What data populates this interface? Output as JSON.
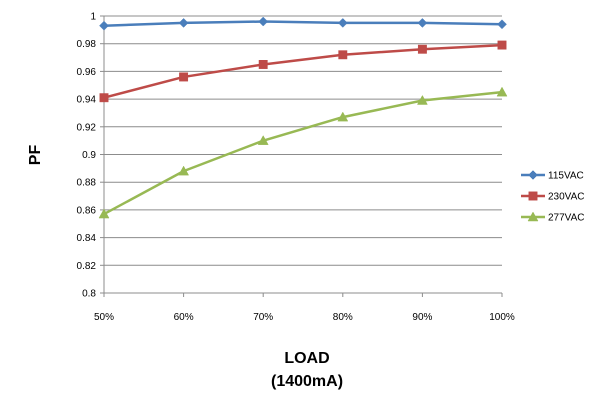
{
  "chart_data": {
    "type": "line",
    "title": "",
    "xlabel_lines": [
      "LOAD",
      "(1400mA)"
    ],
    "ylabel": "PF",
    "categories": [
      "50%",
      "60%",
      "70%",
      "80%",
      "90%",
      "100%"
    ],
    "ylim": [
      0.8,
      1.0
    ],
    "yticks": [
      0.8,
      0.82,
      0.84,
      0.86,
      0.88,
      0.9,
      0.92,
      0.94,
      0.96,
      0.98,
      1.0
    ],
    "ytick_labels": [
      "0.8",
      "0.82",
      "0.84",
      "0.86",
      "0.88",
      "0.9",
      "0.92",
      "0.94",
      "0.96",
      "0.98",
      "1"
    ],
    "grid": true,
    "legend_position": "right",
    "series": [
      {
        "name": "115VAC",
        "color": "#4a7ebb",
        "marker": "diamond",
        "values": [
          0.993,
          0.995,
          0.996,
          0.995,
          0.995,
          0.994
        ]
      },
      {
        "name": "230VAC",
        "color": "#be4b48",
        "marker": "square",
        "values": [
          0.941,
          0.956,
          0.965,
          0.972,
          0.976,
          0.979
        ]
      },
      {
        "name": "277VAC",
        "color": "#98b954",
        "marker": "triangle",
        "values": [
          0.857,
          0.888,
          0.91,
          0.927,
          0.939,
          0.945
        ]
      }
    ]
  }
}
